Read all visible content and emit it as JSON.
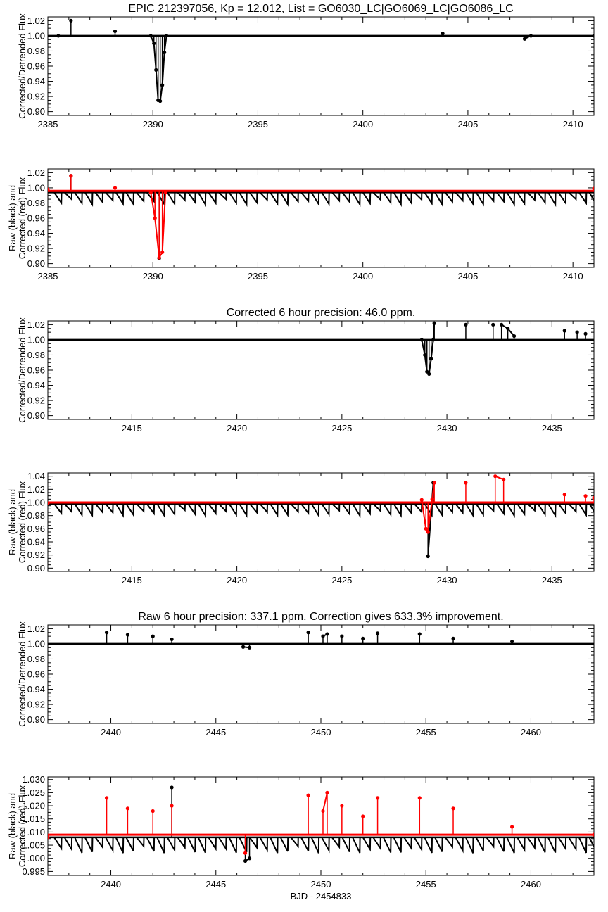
{
  "chart_data": [
    {
      "type": "scatter",
      "title": "EPIC 212397056, Kp = 12.012, List = GO6030_LC|GO6069_LC|GO6086_LC",
      "ylabel": [
        "Corrected/Detrended Flux"
      ],
      "xlabel": "",
      "xlim": [
        2385,
        2411
      ],
      "ylim": [
        0.895,
        1.025
      ],
      "xticks": [
        "2385",
        "2390",
        "2395",
        "2400",
        "2405",
        "2410"
      ],
      "yticks": [
        "0.90",
        "0.92",
        "0.94",
        "0.96",
        "0.98",
        "1.00",
        "1.02"
      ],
      "series": [
        {
          "color": "#000000",
          "baseline": 1.0,
          "values": [
            [
              2385.5,
              1.0
            ],
            [
              2386.1,
              1.02
            ],
            [
              2388.2,
              1.006
            ],
            [
              2389.9,
              1.0
            ],
            [
              2390.05,
              0.99
            ],
            [
              2390.15,
              0.955
            ],
            [
              2390.25,
              0.915
            ],
            [
              2390.35,
              0.914
            ],
            [
              2390.45,
              0.935
            ],
            [
              2390.55,
              0.978
            ],
            [
              2390.65,
              1.0
            ],
            [
              2403.8,
              1.003
            ],
            [
              2407.7,
              0.996
            ],
            [
              2408.0,
              1.0
            ],
            [
              2411,
              1.0
            ]
          ]
        }
      ]
    },
    {
      "type": "scatter",
      "title": "",
      "ylabel": [
        "Raw (black) and",
        "Corrected (red) Flux"
      ],
      "xlabel": "",
      "xlim": [
        2385,
        2411
      ],
      "ylim": [
        0.895,
        1.025
      ],
      "xticks": [
        "2385",
        "2390",
        "2395",
        "2400",
        "2405",
        "2410"
      ],
      "yticks": [
        "0.90",
        "0.92",
        "0.94",
        "0.96",
        "0.98",
        "1.00",
        "1.02"
      ],
      "series": [
        {
          "color": "#000000",
          "baseline": 0.994,
          "sawtooth_depth": 0.016,
          "values": [
            [
              2386.1,
              1.016
            ],
            [
              2390.3,
              0.907
            ]
          ]
        },
        {
          "color": "#ff0000",
          "baseline": 0.996,
          "values": [
            [
              2385,
              0.998
            ],
            [
              2386.1,
              1.016
            ],
            [
              2388.2,
              1.0
            ],
            [
              2389.9,
              0.994
            ],
            [
              2390.1,
              0.96
            ],
            [
              2390.3,
              0.908
            ],
            [
              2390.45,
              0.915
            ],
            [
              2390.6,
              0.994
            ],
            [
              2411,
              0.999
            ]
          ]
        }
      ]
    },
    {
      "type": "scatter",
      "title": "Corrected 6 hour precision: 46.0 ppm.",
      "ylabel": [
        "Corrected/Detrended Flux"
      ],
      "xlabel": "",
      "xlim": [
        2411,
        2437
      ],
      "ylim": [
        0.895,
        1.025
      ],
      "xticks": [
        "2415",
        "2420",
        "2425",
        "2430",
        "2435"
      ],
      "yticks": [
        "0.90",
        "0.92",
        "0.94",
        "0.96",
        "0.98",
        "1.00",
        "1.02"
      ],
      "series": [
        {
          "color": "#000000",
          "baseline": 1.0,
          "values": [
            [
              2428.8,
              1.0
            ],
            [
              2428.95,
              0.98
            ],
            [
              2429.05,
              0.958
            ],
            [
              2429.15,
              0.955
            ],
            [
              2429.25,
              0.975
            ],
            [
              2429.35,
              1.0
            ],
            [
              2429.4,
              1.022
            ],
            [
              2430.9,
              1.02
            ],
            [
              2432.2,
              1.02
            ],
            [
              2432.6,
              1.02
            ],
            [
              2432.9,
              1.015
            ],
            [
              2433.2,
              1.005
            ],
            [
              2435.6,
              1.012
            ],
            [
              2436.2,
              1.01
            ],
            [
              2436.6,
              1.008
            ]
          ]
        }
      ]
    },
    {
      "type": "scatter",
      "title": "",
      "ylabel": [
        "Raw (black) and",
        "Corrected (red) Flux"
      ],
      "xlabel": "",
      "xlim": [
        2411,
        2437
      ],
      "ylim": [
        0.895,
        1.045
      ],
      "xticks": [
        "2415",
        "2420",
        "2425",
        "2430",
        "2435"
      ],
      "yticks": [
        "0.90",
        "0.92",
        "0.94",
        "0.96",
        "0.98",
        "1.00",
        "1.02",
        "1.04"
      ],
      "series": [
        {
          "color": "#000000",
          "baseline": 0.998,
          "sawtooth_depth": 0.018,
          "values": [
            [
              2429.1,
              0.918
            ],
            [
              2429.35,
              1.03
            ]
          ]
        },
        {
          "color": "#ff0000",
          "baseline": 1.0,
          "values": [
            [
              2411,
              0.999
            ],
            [
              2428.8,
              1.004
            ],
            [
              2429.0,
              0.96
            ],
            [
              2429.1,
              0.955
            ],
            [
              2429.3,
              1.005
            ],
            [
              2429.4,
              1.03
            ],
            [
              2430.9,
              1.03
            ],
            [
              2432.3,
              1.04
            ],
            [
              2432.7,
              1.035
            ],
            [
              2435.6,
              1.012
            ],
            [
              2436.6,
              1.01
            ],
            [
              2437,
              1.007
            ]
          ]
        }
      ]
    },
    {
      "type": "scatter",
      "title": "Raw 6 hour precision: 337.1 ppm. Correction gives 633.3% improvement.",
      "ylabel": [
        "Corrected/Detrended Flux"
      ],
      "xlabel": "",
      "xlim": [
        2437,
        2463
      ],
      "ylim": [
        0.895,
        1.025
      ],
      "xticks": [
        "2440",
        "2445",
        "2450",
        "2455",
        "2460"
      ],
      "yticks": [
        "0.90",
        "0.92",
        "0.94",
        "0.96",
        "0.98",
        "1.00",
        "1.02"
      ],
      "series": [
        {
          "color": "#000000",
          "baseline": 1.0,
          "values": [
            [
              2439.8,
              1.015
            ],
            [
              2440.8,
              1.012
            ],
            [
              2442.0,
              1.01
            ],
            [
              2442.9,
              1.006
            ],
            [
              2446.3,
              0.996
            ],
            [
              2446.6,
              0.995
            ],
            [
              2449.4,
              1.015
            ],
            [
              2450.1,
              1.01
            ],
            [
              2450.3,
              1.013
            ],
            [
              2451.0,
              1.01
            ],
            [
              2452.0,
              1.007
            ],
            [
              2452.7,
              1.014
            ],
            [
              2454.7,
              1.013
            ],
            [
              2456.3,
              1.007
            ],
            [
              2459.1,
              1.003
            ]
          ]
        }
      ]
    },
    {
      "type": "scatter",
      "title": "",
      "ylabel": [
        "Raw (black) and",
        "Corrected (red) Flux"
      ],
      "xlabel": "BJD - 2454833",
      "xlim": [
        2437,
        2463
      ],
      "ylim": [
        0.9935,
        1.031
      ],
      "xticks": [
        "2440",
        "2445",
        "2450",
        "2455",
        "2460"
      ],
      "yticks": [
        "0.995",
        "1.000",
        "1.005",
        "1.010",
        "1.015",
        "1.020",
        "1.025",
        "1.030"
      ],
      "series": [
        {
          "color": "#000000",
          "baseline": 1.008,
          "sawtooth_depth": 0.006,
          "values": [
            [
              2442.9,
              1.027
            ],
            [
              2446.4,
              0.999
            ],
            [
              2446.6,
              1.0
            ]
          ]
        },
        {
          "color": "#ff0000",
          "baseline": 1.009,
          "values": [
            [
              2437,
              1.008
            ],
            [
              2439.8,
              1.023
            ],
            [
              2440.8,
              1.019
            ],
            [
              2442.0,
              1.018
            ],
            [
              2442.9,
              1.02
            ],
            [
              2446.4,
              1.002
            ],
            [
              2449.4,
              1.024
            ],
            [
              2450.1,
              1.018
            ],
            [
              2450.3,
              1.025
            ],
            [
              2451.0,
              1.02
            ],
            [
              2452.0,
              1.016
            ],
            [
              2452.7,
              1.023
            ],
            [
              2454.7,
              1.023
            ],
            [
              2456.3,
              1.019
            ],
            [
              2459.1,
              1.012
            ],
            [
              2463,
              1.009
            ]
          ]
        }
      ]
    }
  ]
}
